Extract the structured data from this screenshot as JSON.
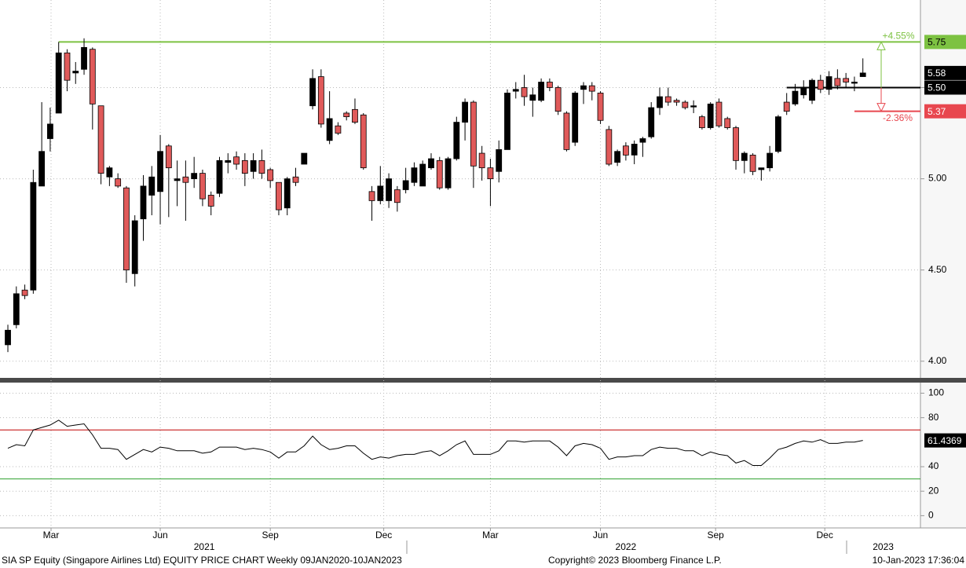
{
  "chart_data": [
    {
      "type": "candlestick",
      "title": "SIA SP Equity (Singapore Airlines Ltd) EQUITY PRICE CHART  Weekly 09JAN2020-10JAN2023",
      "up_color": "#000000",
      "down_color": "#e05a5a",
      "grid": true,
      "xlim": [
        -0.93,
        107.8
      ],
      "ylim": [
        3.9,
        5.98
      ],
      "yticks": [
        {
          "value": 4,
          "label": "4.00"
        },
        {
          "value": 4.5,
          "label": "4.50"
        },
        {
          "value": 5,
          "label": "5.00"
        },
        {
          "value": 5.5,
          "label": "5.50"
        }
      ],
      "xticks": [
        {
          "value": 5.1,
          "label": "Mar"
        },
        {
          "value": 18,
          "label": "Jun"
        },
        {
          "value": 31,
          "label": "Sep"
        },
        {
          "value": 44.4,
          "label": "Dec"
        },
        {
          "value": 57,
          "label": "Mar"
        },
        {
          "value": 70,
          "label": "Jun"
        },
        {
          "value": 83.6,
          "label": "Sep"
        },
        {
          "value": 96.5,
          "label": "Dec"
        }
      ],
      "year_ticks": [
        {
          "value": 23.2,
          "label": "2021"
        },
        {
          "value": 73,
          "label": "2022"
        },
        {
          "value": 103.4,
          "label": "2023"
        }
      ],
      "open": [
        4.09,
        4.2,
        4.39,
        4.39,
        4.96,
        5.22,
        5.36,
        5.69,
        5.58,
        5.6,
        5.71,
        5.4,
        5.01,
        5.0,
        4.95,
        4.48,
        4.78,
        4.91,
        4.93,
        5.18,
        4.99,
        5.01,
        5.0,
        5.03,
        4.91,
        4.92,
        5.09,
        5.12,
        5.1,
        5.04,
        5.1,
        5.05,
        4.98,
        4.84,
        5.01,
        5.08,
        5.4,
        5.56,
        5.21,
        5.29,
        5.36,
        5.38,
        5.35,
        4.93,
        4.88,
        4.88,
        4.94,
        4.94,
        4.98,
        4.96,
        5.06,
        5.1,
        4.95,
        5.11,
        5.31,
        5.42,
        5.14,
        5.06,
        5.04,
        5.16,
        5.48,
        5.5,
        5.43,
        5.43,
        5.53,
        5.5,
        5.36,
        5.2,
        5.49,
        5.51,
        5.47,
        5.27,
        5.09,
        5.18,
        5.13,
        5.2,
        5.23,
        5.39,
        5.45,
        5.43,
        5.42,
        5.4,
        5.34,
        5.28,
        5.42,
        5.33,
        5.28,
        5.1,
        5.13,
        5.05,
        5.06,
        5.15,
        5.42,
        5.41,
        5.46,
        5.43,
        5.54,
        5.49,
        5.55,
        5.55,
        5.53,
        5.56
      ],
      "high": [
        4.2,
        4.41,
        4.42,
        5.05,
        5.42,
        5.39,
        5.75,
        5.71,
        5.64,
        5.77,
        5.72,
        5.4,
        5.07,
        5.03,
        4.96,
        4.8,
        5.02,
        5.07,
        5.24,
        5.19,
        5.1,
        5.1,
        5.12,
        5.05,
        4.93,
        5.12,
        5.14,
        5.15,
        5.14,
        5.14,
        5.16,
        5.06,
        4.98,
        5.01,
        5.06,
        5.14,
        5.6,
        5.6,
        5.48,
        5.31,
        5.37,
        5.44,
        5.36,
        4.96,
        5.07,
        5.03,
        4.96,
        5.06,
        5.09,
        5.1,
        5.14,
        5.12,
        5.12,
        5.34,
        5.44,
        5.43,
        5.18,
        5.11,
        5.21,
        5.49,
        5.53,
        5.57,
        5.5,
        5.55,
        5.55,
        5.51,
        5.37,
        5.48,
        5.53,
        5.53,
        5.48,
        5.29,
        5.16,
        5.2,
        5.21,
        5.23,
        5.42,
        5.5,
        5.5,
        5.44,
        5.43,
        5.43,
        5.35,
        5.42,
        5.44,
        5.34,
        5.29,
        5.15,
        5.14,
        5.06,
        5.18,
        5.35,
        5.47,
        5.52,
        5.54,
        5.55,
        5.57,
        5.59,
        5.6,
        5.58,
        5.56,
        5.66
      ],
      "low": [
        4.05,
        4.18,
        4.34,
        4.37,
        4.96,
        5.15,
        5.36,
        5.48,
        5.52,
        5.57,
        5.27,
        4.97,
        4.96,
        4.95,
        4.43,
        4.41,
        4.66,
        4.8,
        4.75,
        4.79,
        4.85,
        4.77,
        4.95,
        4.85,
        4.8,
        4.9,
        5.03,
        5.05,
        4.96,
        5.0,
        5.0,
        4.95,
        4.8,
        4.8,
        4.96,
        5.08,
        5.38,
        5.28,
        5.19,
        5.24,
        5.32,
        5.3,
        5.05,
        4.77,
        4.86,
        4.84,
        4.82,
        4.92,
        4.96,
        4.96,
        5.05,
        4.94,
        4.94,
        5.1,
        5.21,
        4.95,
        4.99,
        4.85,
        4.98,
        5.16,
        5.44,
        5.4,
        5.34,
        5.42,
        5.48,
        5.35,
        5.15,
        5.18,
        5.41,
        5.43,
        5.3,
        5.07,
        5.07,
        5.1,
        5.08,
        5.12,
        5.22,
        5.35,
        5.4,
        5.4,
        5.38,
        5.36,
        5.27,
        5.27,
        5.28,
        5.27,
        5.05,
        5.03,
        5.02,
        4.99,
        5.04,
        5.14,
        5.35,
        5.4,
        5.44,
        5.41,
        5.47,
        5.46,
        5.49,
        5.5,
        5.48,
        5.56
      ],
      "close": [
        4.17,
        4.37,
        4.36,
        4.98,
        5.15,
        5.3,
        5.69,
        5.54,
        5.59,
        5.72,
        5.41,
        5.03,
        5.06,
        4.96,
        4.5,
        4.77,
        4.96,
        5.01,
        5.15,
        5.06,
        5.0,
        4.98,
        5.03,
        4.89,
        4.85,
        5.1,
        5.1,
        5.08,
        5.03,
        5.1,
        5.03,
        4.99,
        4.83,
        5.0,
        4.98,
        5.14,
        5.55,
        5.3,
        5.33,
        5.25,
        5.34,
        5.31,
        5.06,
        4.88,
        4.96,
        5.0,
        4.87,
        4.99,
        5.06,
        5.08,
        5.11,
        4.95,
        5.11,
        5.31,
        5.42,
        5.07,
        5.06,
        5.0,
        5.16,
        5.47,
        5.49,
        5.45,
        5.46,
        5.53,
        5.5,
        5.37,
        5.16,
        5.47,
        5.51,
        5.48,
        5.32,
        5.08,
        5.15,
        5.13,
        5.19,
        5.22,
        5.39,
        5.45,
        5.42,
        5.42,
        5.39,
        5.4,
        5.28,
        5.41,
        5.29,
        5.28,
        5.1,
        5.14,
        5.04,
        5.06,
        5.14,
        5.34,
        5.37,
        5.48,
        5.5,
        5.54,
        5.49,
        5.56,
        5.51,
        5.53,
        5.53,
        5.58
      ],
      "levels": [
        {
          "value": 5.75,
          "label": "5.75",
          "color": "#7dc242",
          "change": "+4.55%"
        },
        {
          "value": 5.5,
          "label": "5.50",
          "color": "#000000"
        },
        {
          "value": 5.37,
          "label": "5.37",
          "color": "#e8474f",
          "change": "-2.36%"
        }
      ]
    },
    {
      "type": "line",
      "xlim": [
        -0.93,
        107.8
      ],
      "ylim": [
        -10,
        108
      ],
      "yticks": [
        0,
        20,
        40,
        80,
        100
      ],
      "grid": true,
      "hlines": [
        {
          "value": 70,
          "color": "#c00000"
        },
        {
          "value": 30,
          "color": "#2ca02c"
        }
      ],
      "series": [
        {
          "color": "#000000",
          "values": [
            55,
            58,
            57,
            70,
            72,
            74,
            78,
            73,
            74,
            75,
            66,
            55,
            55,
            54,
            46,
            50,
            54,
            52,
            56,
            55,
            53,
            53,
            53,
            51,
            52,
            56,
            56,
            56,
            54,
            55,
            54,
            52,
            47,
            52,
            52,
            57,
            65,
            58,
            54,
            55,
            57,
            57,
            51,
            46,
            48,
            47,
            49,
            50,
            50,
            52,
            53,
            49,
            53,
            58,
            61,
            50,
            50,
            50,
            53,
            61,
            61,
            60,
            61,
            61,
            61,
            56,
            49,
            57,
            59,
            58,
            55,
            46,
            48,
            48,
            49,
            49,
            54,
            56,
            55,
            55,
            53,
            53,
            49,
            52,
            50,
            49,
            43,
            45,
            41,
            41,
            47,
            54,
            56,
            59,
            61,
            60,
            62,
            59,
            59,
            60,
            60,
            61.4369
          ]
        }
      ]
    }
  ],
  "footer": {
    "copyright": "Copyright© 2023 Bloomberg Finance L.P.",
    "timestamp": "10-Jan-2023 17:36:04"
  }
}
